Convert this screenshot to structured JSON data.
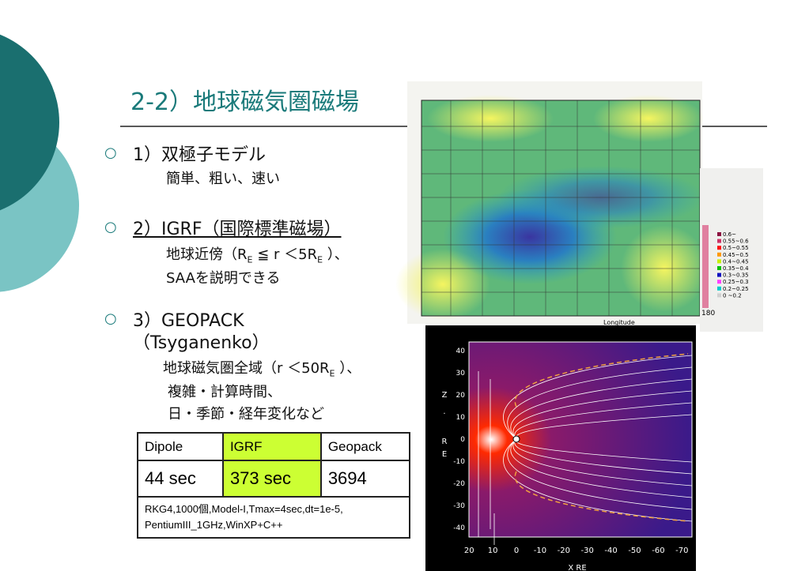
{
  "title": "2-2）地球磁気圏磁場",
  "bullets": [
    {
      "heading": [
        "1）双極子モデル"
      ],
      "details": [
        [
          {
            "text": "簡単、粗い、速い"
          }
        ]
      ]
    },
    {
      "heading": [
        "2）IGRF（国際標準磁場）"
      ],
      "details": [
        [
          {
            "text": "地球近傍（R"
          },
          {
            "sub": "E"
          },
          {
            "text": " ≦ r ＜5R"
          },
          {
            "sub": "E"
          },
          {
            "text": " ）、"
          }
        ],
        [
          {
            "text": "SAAを説明できる"
          }
        ]
      ]
    },
    {
      "heading": [
        "3）GEOPACK",
        "（Tsyganenko）"
      ],
      "details": [
        [
          {
            "text": "地球磁気圏全域（r ＜50R"
          },
          {
            "sub": "E"
          },
          {
            "text": " ）、"
          }
        ],
        [
          {
            "text": "複雑・計算時間、"
          }
        ],
        [
          {
            "text": "日・季節・経年変化など"
          }
        ]
      ]
    }
  ],
  "table": {
    "header": [
      "Dipole",
      "IGRF",
      "Geopack"
    ],
    "row": [
      "44 sec",
      "373 sec",
      "3694"
    ],
    "note": [
      "RKG4,1000個,Model-I,Tmax=4sec,dt=1e-5,",
      "PentiumIII_1GHz,WinXP+C++"
    ]
  },
  "map_image": {
    "legend": [
      {
        "label": "0.6~",
        "color": "#8b1040"
      },
      {
        "label": "0.55~0.6",
        "color": "#cc3366"
      },
      {
        "label": "0.5~0.55",
        "color": "#ff1010"
      },
      {
        "label": "0.45~0.5",
        "color": "#ff9900"
      },
      {
        "label": "0.4~0.45",
        "color": "#c8f000"
      },
      {
        "label": "0.35~0.4",
        "color": "#00c000"
      },
      {
        "label": "0.3~0.35",
        "color": "#1010c0"
      },
      {
        "label": "0.25~0.3",
        "color": "#ff40ff"
      },
      {
        "label": "0.2~0.25",
        "color": "#00cccc"
      },
      {
        "label": "0 ~0.2",
        "color": "#d0d0d0"
      }
    ],
    "corner_label": "180",
    "x_label": "Longitude"
  },
  "magnetosphere_image": {
    "xticks": [
      20,
      10,
      0,
      -10,
      -20,
      -30,
      -40,
      -50,
      -60,
      -70
    ],
    "yticks": [
      40,
      30,
      20,
      10,
      0,
      -10,
      -20,
      -30,
      -40
    ],
    "x_label": "X RE",
    "z_label": [
      "Z",
      "·",
      "R",
      "E"
    ]
  }
}
